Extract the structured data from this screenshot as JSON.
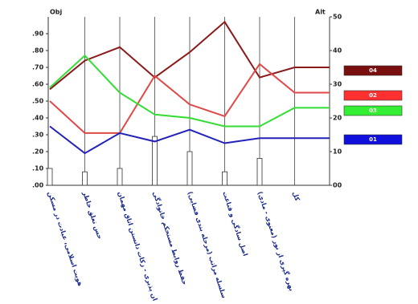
{
  "chart_data": {
    "type": "line",
    "ylabel": "Obj",
    "y2label": "Alt",
    "categories": [
      "هویت اسلامی، عبادت در مسکن",
      "حس تعلق خاطر",
      "مهمان پذیری - زکات دانستن اتاق مهمان",
      "حفظ روابط مستحکم خانوادگی",
      "سلسله مراتب (مرحله بندی فضایی)",
      "اصل سادگی و قناعت",
      "بهره گیری از نور (معنوی - مادی)",
      "کل",
      null
    ],
    "series": [
      {
        "name": "04",
        "color": "#8b1a1a",
        "legend_color": "#7a0f0f",
        "values": [
          0.57,
          0.74,
          0.82,
          0.64,
          0.79,
          0.97,
          0.64,
          0.7,
          0.7
        ]
      },
      {
        "name": "02",
        "color": "#e04848",
        "legend_color": "#ff3030",
        "values": [
          0.5,
          0.31,
          0.31,
          0.65,
          0.48,
          0.41,
          0.72,
          0.55,
          0.55
        ]
      },
      {
        "name": "03",
        "color": "#33dd33",
        "legend_color": "#33ee33",
        "values": [
          0.58,
          0.77,
          0.55,
          0.42,
          0.4,
          0.35,
          0.35,
          0.46,
          0.46
        ]
      },
      {
        "name": "01",
        "color": "#2222bb",
        "legend_color": "#1010dd",
        "values": [
          0.35,
          0.19,
          0.31,
          0.26,
          0.33,
          0.25,
          0.28,
          0.28,
          0.28
        ]
      }
    ],
    "bars": {
      "type": "bar",
      "axis": "y2",
      "color": "#ffffff",
      "values": [
        5,
        4,
        5,
        14.5,
        10,
        4,
        8,
        null,
        null
      ]
    },
    "ylim": [
      0,
      1
    ],
    "yticks": [
      {
        "value": 0,
        "label": ".00"
      },
      {
        "value": 0.1,
        "label": ".10"
      },
      {
        "value": 0.2,
        "label": ".20"
      },
      {
        "value": 0.3,
        "label": ".30"
      },
      {
        "value": 0.4,
        "label": ".40"
      },
      {
        "value": 0.5,
        "label": ".50"
      },
      {
        "value": 0.6,
        "label": ".60"
      },
      {
        "value": 0.7,
        "label": ".70"
      },
      {
        "value": 0.8,
        "label": ".80"
      },
      {
        "value": 0.9,
        "label": ".90"
      }
    ],
    "y2lim": [
      0,
      50
    ],
    "y2ticks": [
      {
        "value": 0,
        "label": "00"
      },
      10,
      20,
      30,
      40,
      50
    ],
    "grid": true
  }
}
